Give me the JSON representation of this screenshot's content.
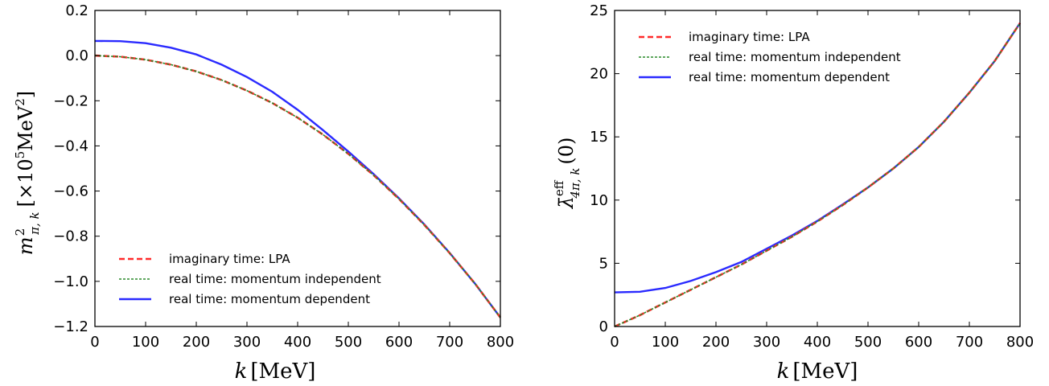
{
  "chart_data": [
    {
      "type": "line",
      "xlabel": "k [MeV]",
      "ylabel": "m²_{π,k} [×10⁵MeV²]",
      "xlim": [
        0,
        800
      ],
      "ylim": [
        -1.2,
        0.2
      ],
      "xticks": [
        0,
        100,
        200,
        300,
        400,
        500,
        600,
        700,
        800
      ],
      "yticks": [
        -1.2,
        -1.0,
        -0.8,
        -0.6,
        -0.4,
        -0.2,
        0.0,
        0.2
      ],
      "ytick_labels": [
        "−1.2",
        "−1.0",
        "−0.8",
        "−0.6",
        "−0.4",
        "−0.2",
        "0.0",
        "0.2"
      ],
      "grid": false,
      "legend_position": "bottom-left",
      "series": [
        {
          "name": "imaginary time: LPA",
          "color": "#ff2a2a",
          "style": "dashed",
          "x": [
            0,
            50,
            100,
            150,
            200,
            250,
            300,
            350,
            400,
            450,
            500,
            550,
            600,
            650,
            700,
            750,
            800
          ],
          "y": [
            0.0,
            -0.005,
            -0.018,
            -0.04,
            -0.07,
            -0.108,
            -0.155,
            -0.21,
            -0.275,
            -0.35,
            -0.435,
            -0.53,
            -0.635,
            -0.75,
            -0.875,
            -1.01,
            -1.16
          ]
        },
        {
          "name": "real time: momentum independent",
          "color": "#2a8a2a",
          "style": "dotted",
          "x": [
            0,
            50,
            100,
            150,
            200,
            250,
            300,
            350,
            400,
            450,
            500,
            550,
            600,
            650,
            700,
            750,
            800
          ],
          "y": [
            0.0,
            -0.005,
            -0.018,
            -0.04,
            -0.07,
            -0.108,
            -0.155,
            -0.21,
            -0.275,
            -0.35,
            -0.435,
            -0.53,
            -0.635,
            -0.75,
            -0.875,
            -1.01,
            -1.16
          ]
        },
        {
          "name": "real time: momentum dependent",
          "color": "#2a2aff",
          "style": "solid",
          "x": [
            0,
            50,
            100,
            150,
            200,
            250,
            300,
            350,
            400,
            450,
            500,
            550,
            600,
            650,
            700,
            750,
            800
          ],
          "y": [
            0.065,
            0.064,
            0.055,
            0.035,
            0.005,
            -0.04,
            -0.095,
            -0.16,
            -0.24,
            -0.33,
            -0.425,
            -0.525,
            -0.632,
            -0.748,
            -0.874,
            -1.01,
            -1.16
          ]
        }
      ]
    },
    {
      "type": "line",
      "xlabel": "k [MeV]",
      "ylabel": "λ̄^eff_{4π,k}(0)",
      "xlim": [
        0,
        800
      ],
      "ylim": [
        0,
        25
      ],
      "xticks": [
        0,
        100,
        200,
        300,
        400,
        500,
        600,
        700,
        800
      ],
      "yticks": [
        0,
        5,
        10,
        15,
        20,
        25
      ],
      "ytick_labels": [
        "0",
        "5",
        "10",
        "15",
        "20",
        "25"
      ],
      "grid": false,
      "legend_position": "top-left",
      "series": [
        {
          "name": "imaginary time: LPA",
          "color": "#ff2a2a",
          "style": "dashed",
          "x": [
            0,
            50,
            100,
            150,
            200,
            250,
            300,
            350,
            400,
            450,
            500,
            550,
            600,
            650,
            700,
            750,
            800
          ],
          "y": [
            0.0,
            0.9,
            1.9,
            2.9,
            3.9,
            4.9,
            6.0,
            7.1,
            8.3,
            9.6,
            11.0,
            12.5,
            14.2,
            16.2,
            18.5,
            21.0,
            24.0
          ]
        },
        {
          "name": "real time: momentum independent",
          "color": "#2a8a2a",
          "style": "dotted",
          "x": [
            0,
            50,
            100,
            150,
            200,
            250,
            300,
            350,
            400,
            450,
            500,
            550,
            600,
            650,
            700,
            750,
            800
          ],
          "y": [
            0.0,
            0.9,
            1.9,
            2.9,
            3.9,
            4.9,
            6.0,
            7.1,
            8.3,
            9.6,
            11.0,
            12.5,
            14.2,
            16.2,
            18.5,
            21.0,
            24.0
          ]
        },
        {
          "name": "real time: momentum dependent",
          "color": "#2a2aff",
          "style": "solid",
          "x": [
            0,
            50,
            100,
            150,
            200,
            250,
            300,
            350,
            400,
            450,
            500,
            550,
            600,
            650,
            700,
            750,
            800
          ],
          "y": [
            2.7,
            2.75,
            3.05,
            3.6,
            4.3,
            5.1,
            6.15,
            7.2,
            8.35,
            9.65,
            11.0,
            12.5,
            14.2,
            16.2,
            18.5,
            21.0,
            24.0
          ]
        }
      ]
    }
  ]
}
